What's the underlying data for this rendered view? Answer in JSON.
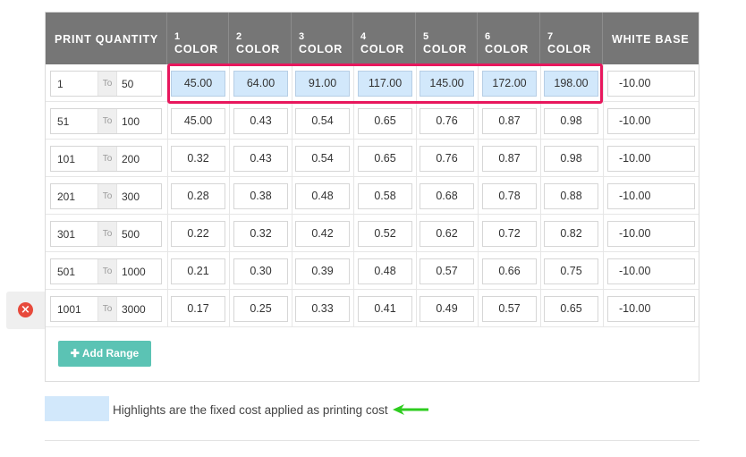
{
  "header": {
    "print_quantity": "PRINT QUANTITY",
    "colors": [
      {
        "num": "1",
        "label": "COLOR"
      },
      {
        "num": "2",
        "label": "COLOR"
      },
      {
        "num": "3",
        "label": "COLOR"
      },
      {
        "num": "4",
        "label": "COLOR"
      },
      {
        "num": "5",
        "label": "COLOR"
      },
      {
        "num": "6",
        "label": "COLOR"
      },
      {
        "num": "7",
        "label": "COLOR"
      }
    ],
    "white_base": "WHITE BASE"
  },
  "to_label": "To",
  "rows": [
    {
      "from": "1",
      "to": "50",
      "prices": [
        "45.00",
        "64.00",
        "91.00",
        "117.00",
        "145.00",
        "172.00",
        "198.00"
      ],
      "white": "-10.00",
      "highlight": true
    },
    {
      "from": "51",
      "to": "100",
      "prices": [
        "45.00",
        "0.43",
        "0.54",
        "0.65",
        "0.76",
        "0.87",
        "0.98"
      ],
      "white": "-10.00",
      "highlight": false
    },
    {
      "from": "101",
      "to": "200",
      "prices": [
        "0.32",
        "0.43",
        "0.54",
        "0.65",
        "0.76",
        "0.87",
        "0.98"
      ],
      "white": "-10.00",
      "highlight": false
    },
    {
      "from": "201",
      "to": "300",
      "prices": [
        "0.28",
        "0.38",
        "0.48",
        "0.58",
        "0.68",
        "0.78",
        "0.88"
      ],
      "white": "-10.00",
      "highlight": false
    },
    {
      "from": "301",
      "to": "500",
      "prices": [
        "0.22",
        "0.32",
        "0.42",
        "0.52",
        "0.62",
        "0.72",
        "0.82"
      ],
      "white": "-10.00",
      "highlight": false
    },
    {
      "from": "501",
      "to": "1000",
      "prices": [
        "0.21",
        "0.30",
        "0.39",
        "0.48",
        "0.57",
        "0.66",
        "0.75"
      ],
      "white": "-10.00",
      "highlight": false
    },
    {
      "from": "1001",
      "to": "3000",
      "prices": [
        "0.17",
        "0.25",
        "0.33",
        "0.41",
        "0.49",
        "0.57",
        "0.65"
      ],
      "white": "-10.00",
      "highlight": false
    }
  ],
  "add_range_label": "Add Range",
  "legend_text": "Highlights are the fixed cost applied as printing cost",
  "icons": {
    "delete": "close-circle-icon",
    "add": "plus-icon",
    "arrow": "left-arrow-icon"
  },
  "colors": {
    "header_bg": "#767676",
    "highlight_bg": "#d2e8fb",
    "outline": "#e8175d",
    "add_button": "#5bc3b4",
    "delete": "#e74a3c",
    "arrow": "#2ecc1f"
  }
}
